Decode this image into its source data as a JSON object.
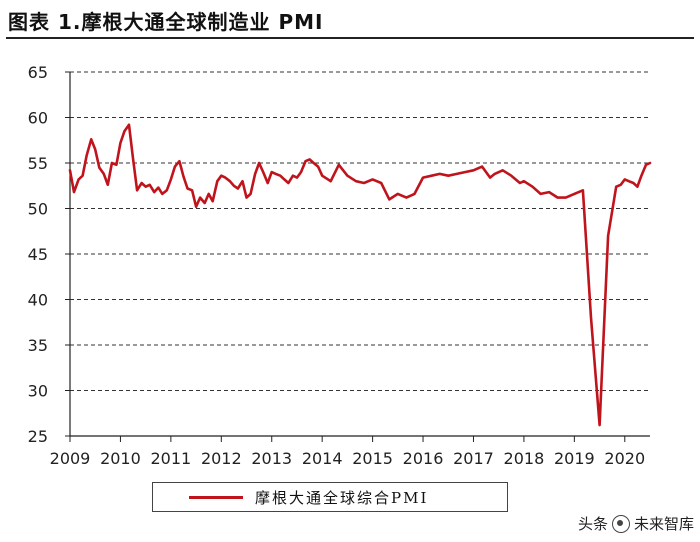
{
  "header": {
    "title": "图表 1.摩根大通全球制造业 PMI"
  },
  "chart_data": {
    "type": "line",
    "title": "图表 1.摩根大通全球制造业 PMI",
    "xlabel": "",
    "ylabel": "",
    "ylim": [
      25,
      65
    ],
    "yticks": [
      25,
      30,
      35,
      40,
      45,
      50,
      55,
      60,
      65
    ],
    "xlim": [
      2009.0,
      2020.5
    ],
    "xticks": [
      2009,
      2010,
      2011,
      2012,
      2013,
      2014,
      2015,
      2016,
      2017,
      2018,
      2019,
      2020
    ],
    "grid": "horizontal dashed",
    "legend": "bottom-center",
    "series": [
      {
        "name": "摩根大通全球综合PMI",
        "color": "#c0141c",
        "x": [
          2009.0,
          2009.08,
          2009.17,
          2009.25,
          2009.33,
          2009.42,
          2009.5,
          2009.58,
          2009.67,
          2009.75,
          2009.83,
          2009.92,
          2010.0,
          2010.08,
          2010.17,
          2010.25,
          2010.33,
          2010.42,
          2010.5,
          2010.58,
          2010.67,
          2010.75,
          2010.83,
          2010.92,
          2011.0,
          2011.08,
          2011.17,
          2011.25,
          2011.33,
          2011.42,
          2011.5,
          2011.58,
          2011.67,
          2011.75,
          2011.83,
          2011.92,
          2012.0,
          2012.08,
          2012.17,
          2012.25,
          2012.33,
          2012.42,
          2012.5,
          2012.58,
          2012.67,
          2012.75,
          2012.83,
          2012.92,
          2013.0,
          2013.08,
          2013.17,
          2013.25,
          2013.33,
          2013.42,
          2013.5,
          2013.58,
          2013.67,
          2013.75,
          2013.83,
          2013.92,
          2014.0,
          2014.17,
          2014.33,
          2014.5,
          2014.67,
          2014.83,
          2015.0,
          2015.17,
          2015.33,
          2015.5,
          2015.67,
          2015.83,
          2016.0,
          2016.17,
          2016.33,
          2016.5,
          2016.67,
          2016.83,
          2017.0,
          2017.17,
          2017.33,
          2017.42,
          2017.58,
          2017.75,
          2017.92,
          2018.0,
          2018.17,
          2018.33,
          2018.5,
          2018.67,
          2018.83,
          2019.0,
          2019.17,
          2019.33,
          2019.5,
          2019.67,
          2019.83,
          2019.92,
          2020.0,
          2020.08,
          2020.17,
          2020.25,
          2020.33,
          2020.42,
          2020.5
        ],
        "y": [
          54.2,
          51.8,
          53.2,
          53.6,
          55.8,
          57.6,
          56.5,
          54.5,
          53.8,
          52.6,
          55.0,
          54.8,
          57.2,
          58.5,
          59.2,
          55.5,
          52.0,
          52.8,
          52.4,
          52.6,
          51.8,
          52.3,
          51.6,
          52.0,
          53.2,
          54.6,
          55.2,
          53.5,
          52.2,
          52.0,
          50.2,
          51.2,
          50.6,
          51.6,
          50.8,
          53.0,
          53.6,
          53.4,
          53.0,
          52.5,
          52.2,
          53.0,
          51.2,
          51.6,
          53.8,
          55.0,
          54.0,
          52.8,
          54.0,
          53.8,
          53.6,
          53.2,
          52.8,
          53.6,
          53.4,
          54.0,
          55.2,
          55.4,
          55.0,
          54.6,
          53.6,
          53.0,
          54.8,
          53.6,
          53.0,
          52.8,
          53.2,
          52.8,
          51.0,
          51.6,
          51.2,
          51.6,
          53.4,
          53.6,
          53.8,
          53.6,
          53.8,
          54.0,
          54.2,
          54.6,
          53.4,
          53.8,
          54.2,
          53.6,
          52.8,
          53.0,
          52.4,
          51.6,
          51.8,
          51.2,
          51.2,
          51.6,
          52.0,
          38.0,
          26.2,
          47.0,
          52.4,
          52.6,
          53.2,
          53.0,
          52.8,
          52.4,
          53.6,
          54.8,
          55.0
        ]
      }
    ]
  },
  "legend": {
    "label": "摩根大通全球综合PMI"
  },
  "watermark": {
    "text_left": "头条",
    "text_right": "未来智库"
  }
}
